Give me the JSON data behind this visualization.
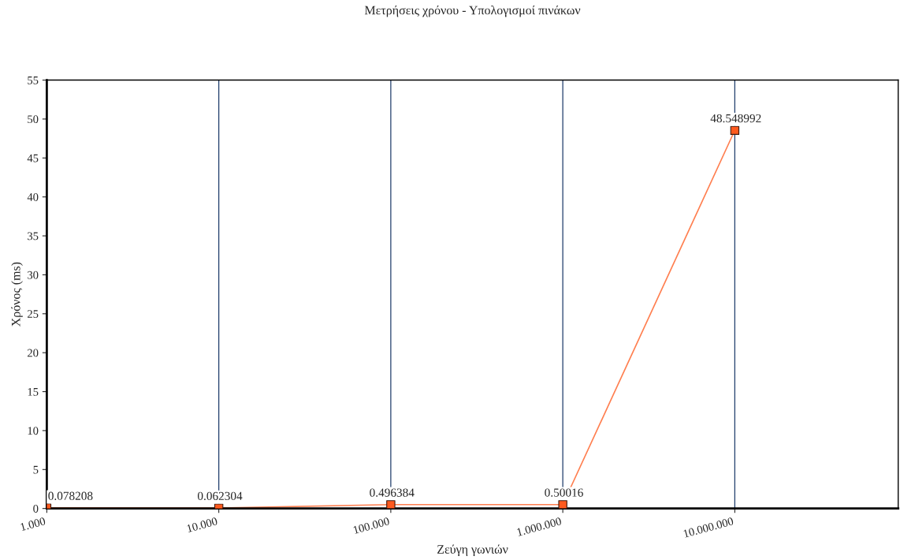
{
  "chart_data": {
    "type": "line",
    "title": "Μετρήσεις χρόνου - Υπολογισμοί πινάκων",
    "xlabel": "Ζεύγη γωνιών",
    "ylabel": "Χρόνος (ms)",
    "categories": [
      "1.000",
      "10.000",
      "100.000",
      "1.000.000",
      "10.000.000"
    ],
    "series": [
      {
        "color": "#ff7f50",
        "values": [
          0.078208,
          0.062304,
          0.496384,
          0.50016,
          48.548992
        ]
      }
    ],
    "ylim": [
      0,
      55
    ],
    "yticks": [
      0,
      5,
      10,
      15,
      20,
      25,
      30,
      35,
      40,
      45,
      50,
      55
    ],
    "grid": "x",
    "marker": "square",
    "line_style": "solid",
    "data_labels": true
  }
}
